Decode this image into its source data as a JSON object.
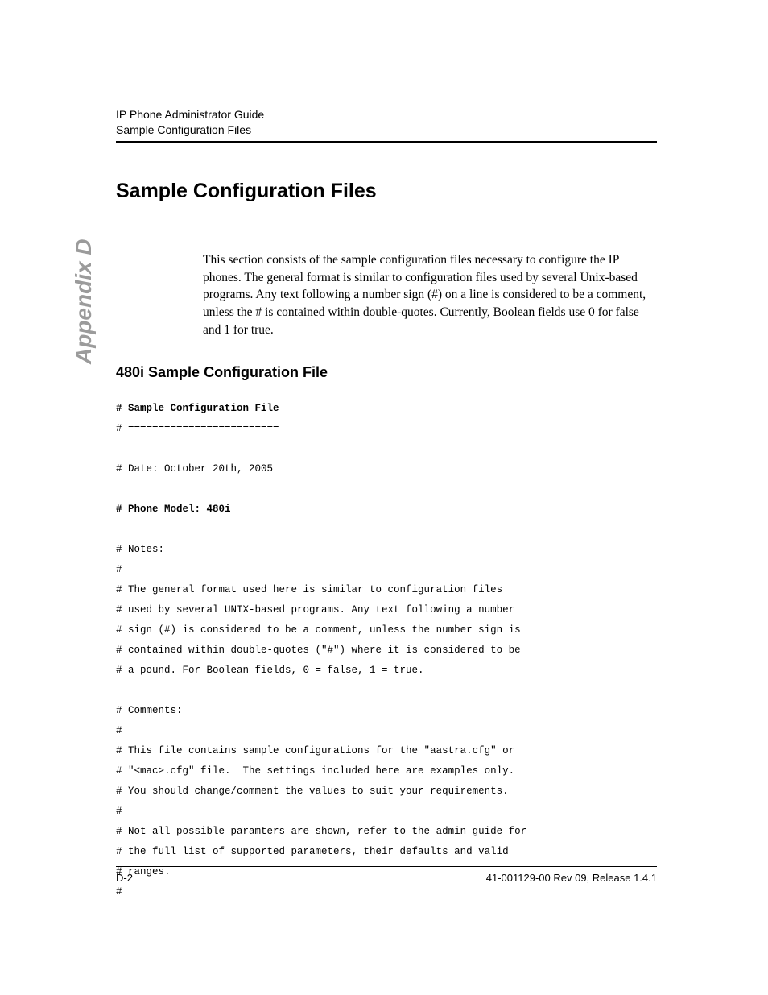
{
  "header": {
    "line1": "IP Phone Administrator Guide",
    "line2": "Sample Configuration Files"
  },
  "side_tab": "Appendix D",
  "section_title": "Sample Configuration Files",
  "body_text": "This section consists of the sample configuration files necessary to configure the IP phones. The general format is similar to configuration files used by several Unix-based programs. Any text following a number sign (#) on a line is considered to be a comment, unless the # is contained within double-quotes. Currently, Boolean fields use 0 for false and 1 for true.",
  "subsection_title": "480i Sample Configuration File",
  "code": {
    "line1_bold": "# Sample Configuration File",
    "line2": "# =========================",
    "line3_blank": "",
    "line4": "# Date: October 20th, 2005",
    "line5_blank": "",
    "line6_bold": "# Phone Model: 480i",
    "line7_blank": "",
    "line8": "# Notes:",
    "line9": "#",
    "line10": "# The general format used here is similar to configuration files",
    "line11": "# used by several UNIX-based programs. Any text following a number",
    "line12": "# sign (#) is considered to be a comment, unless the number sign is",
    "line13": "# contained within double-quotes (\"#\") where it is considered to be",
    "line14": "# a pound. For Boolean fields, 0 = false, 1 = true.",
    "line15_blank": "",
    "line16": "# Comments:",
    "line17": "#",
    "line18": "# This file contains sample configurations for the \"aastra.cfg\" or",
    "line19": "# \"<mac>.cfg\" file.  The settings included here are examples only.",
    "line20": "# You should change/comment the values to suit your requirements.",
    "line21": "# ",
    "line22": "# Not all possible paramters are shown, refer to the admin guide for",
    "line23": "# the full list of supported parameters, their defaults and valid ",
    "line24": "# ranges.",
    "line25": "#"
  },
  "footer": {
    "left": "D-2",
    "right": "41-001129-00 Rev 09, Release 1.4.1"
  },
  "colors": {
    "text": "#000000",
    "side_tab": "#9b9b9b",
    "background": "#ffffff"
  },
  "typography": {
    "header_fontsize": 14,
    "section_title_fontsize": 25,
    "body_fontsize": 15.5,
    "subsection_fontsize": 18,
    "code_fontsize": 12.5,
    "footer_fontsize": 13,
    "side_tab_fontsize": 28
  }
}
